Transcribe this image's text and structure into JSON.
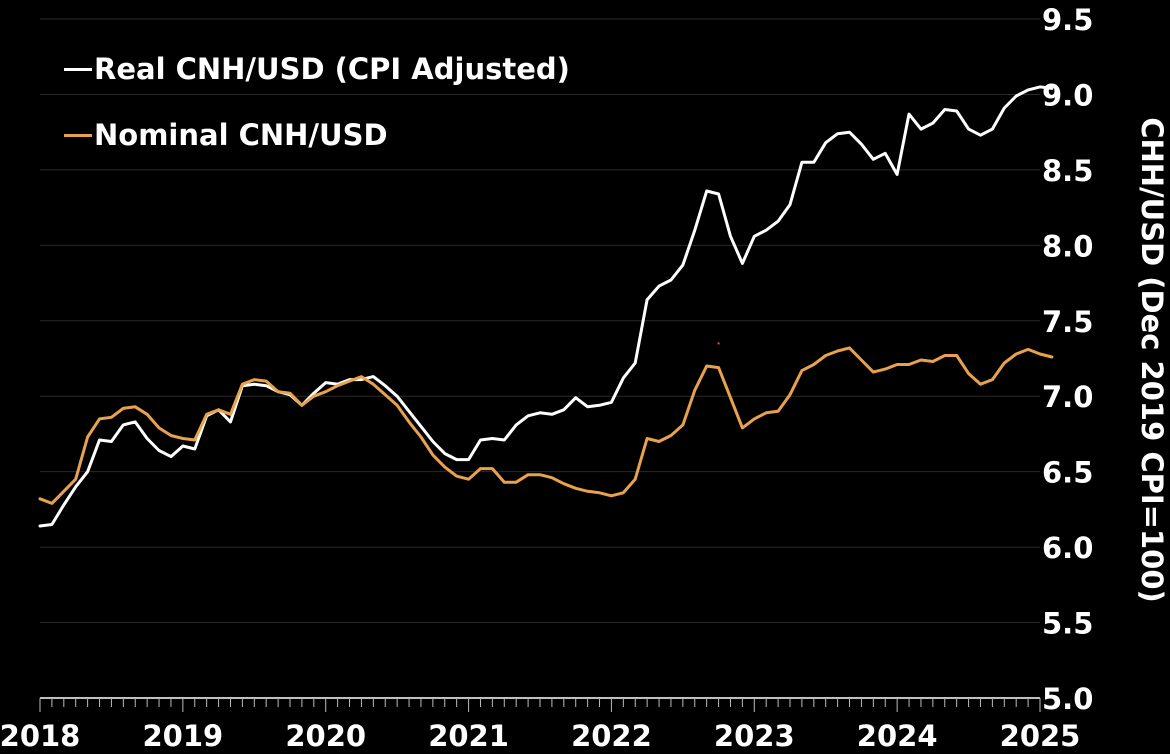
{
  "chart_data": {
    "type": "line",
    "title": "",
    "xlabel": "",
    "ylabel": "CHH/USD (Dec 2019 CPI=100)",
    "ylim": [
      5.0,
      9.5
    ],
    "xlim": [
      2018,
      2025
    ],
    "grid": "horizontal",
    "legend_placement": "top-left",
    "colors": {
      "background": "#000000",
      "grid": "#2a2a2a",
      "axis": "#ffffff",
      "real": "#ffffff",
      "nominal": "#e8a24e",
      "marker": "#e05a1a"
    },
    "y_ticks": [
      {
        "value": 5.0,
        "label": "5.0"
      },
      {
        "value": 5.5,
        "label": "5.5"
      },
      {
        "value": 6.0,
        "label": "6.0"
      },
      {
        "value": 6.5,
        "label": "6.5"
      },
      {
        "value": 7.0,
        "label": "7.0"
      },
      {
        "value": 7.5,
        "label": "7.5"
      },
      {
        "value": 8.0,
        "label": "8.0"
      },
      {
        "value": 8.5,
        "label": "8.5"
      },
      {
        "value": 9.0,
        "label": "9.0"
      },
      {
        "value": 9.5,
        "label": "9.5"
      }
    ],
    "x_ticks": [
      {
        "value": 2018,
        "label": "2018"
      },
      {
        "value": 2019,
        "label": "2019"
      },
      {
        "value": 2020,
        "label": "2020"
      },
      {
        "value": 2021,
        "label": "2021"
      },
      {
        "value": 2022,
        "label": "2022"
      },
      {
        "value": 2023,
        "label": "2023"
      },
      {
        "value": 2024,
        "label": "2024"
      },
      {
        "value": 2025,
        "label": "2025"
      }
    ],
    "series": [
      {
        "name": "Real CNH/USD (CPI Adjusted)",
        "key": "real",
        "color": "#ffffff",
        "x_start": 2018.0,
        "step_months": 1,
        "values": [
          6.14,
          6.15,
          6.28,
          6.4,
          6.5,
          6.71,
          6.7,
          6.81,
          6.83,
          6.72,
          6.64,
          6.6,
          6.67,
          6.65,
          6.87,
          6.91,
          6.83,
          7.07,
          7.08,
          7.07,
          7.03,
          7.01,
          6.94,
          7.02,
          7.09,
          7.08,
          7.11,
          7.11,
          7.13,
          7.07,
          7.0,
          6.9,
          6.8,
          6.7,
          6.62,
          6.58,
          6.58,
          6.71,
          6.72,
          6.71,
          6.81,
          6.87,
          6.89,
          6.88,
          6.91,
          6.99,
          6.93,
          6.94,
          6.96,
          7.12,
          7.22,
          7.64,
          7.73,
          7.77,
          7.87,
          8.1,
          8.36,
          8.34,
          8.06,
          7.88,
          8.06,
          8.1,
          8.16,
          8.27,
          8.55,
          8.55,
          8.68,
          8.74,
          8.75,
          8.67,
          8.57,
          8.61,
          8.47,
          8.87,
          8.77,
          8.81,
          8.9,
          8.89,
          8.77,
          8.73,
          8.77,
          8.91,
          8.99,
          9.03,
          9.05,
          9.04
        ]
      },
      {
        "name": "Nominal CNH/USD",
        "key": "nominal",
        "color": "#e8a24e",
        "x_start": 2018.0,
        "step_months": 1,
        "values": [
          6.32,
          6.29,
          6.37,
          6.45,
          6.73,
          6.85,
          6.86,
          6.92,
          6.93,
          6.88,
          6.79,
          6.74,
          6.72,
          6.71,
          6.88,
          6.91,
          6.88,
          7.08,
          7.11,
          7.1,
          7.03,
          7.02,
          6.94,
          7.0,
          7.03,
          7.07,
          7.1,
          7.13,
          7.08,
          7.01,
          6.94,
          6.83,
          6.73,
          6.61,
          6.53,
          6.47,
          6.45,
          6.52,
          6.52,
          6.43,
          6.43,
          6.48,
          6.48,
          6.46,
          6.42,
          6.39,
          6.37,
          6.36,
          6.34,
          6.36,
          6.45,
          6.72,
          6.7,
          6.74,
          6.81,
          7.04,
          7.2,
          7.19,
          6.99,
          6.79,
          6.85,
          6.89,
          6.9,
          7.01,
          7.17,
          7.21,
          7.27,
          7.3,
          7.32,
          7.24,
          7.16,
          7.18,
          7.21,
          7.21,
          7.24,
          7.23,
          7.27,
          7.27,
          7.15,
          7.08,
          7.11,
          7.22,
          7.28,
          7.31,
          7.28,
          7.26
        ]
      }
    ],
    "annotation_marker": {
      "x": 2022.75,
      "y": 7.35
    }
  }
}
